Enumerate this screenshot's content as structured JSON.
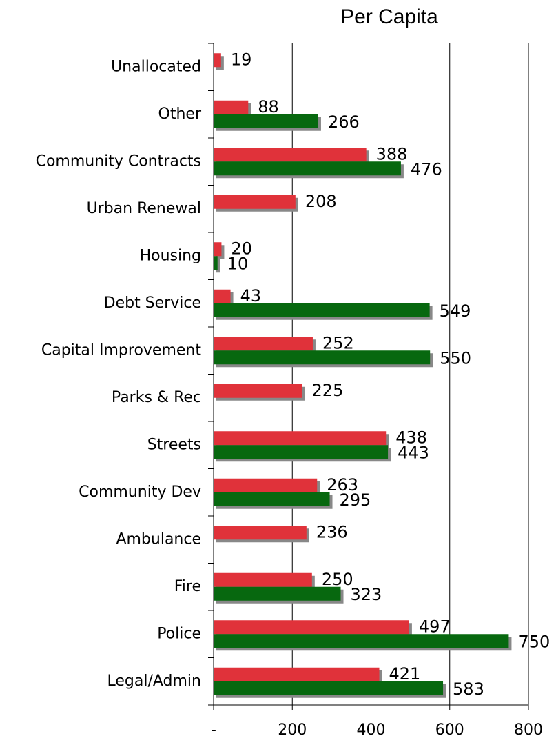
{
  "chart_data": {
    "type": "hbar",
    "title": "Per Capita",
    "categories": [
      "Unallocated",
      "Other",
      "Community Contracts",
      "Urban Renewal",
      "Housing",
      "Debt Service",
      "Capital Improvement",
      "Parks & Rec",
      "Streets",
      "Community Dev",
      "Ambulance",
      "Fire",
      "Police",
      "Legal/Admin"
    ],
    "series": [
      {
        "color": "#e0323a",
        "values": [
          19,
          88,
          388,
          208,
          20,
          43,
          252,
          225,
          438,
          263,
          236,
          250,
          497,
          421
        ]
      },
      {
        "color": "#07680f",
        "values": [
          null,
          266,
          476,
          null,
          10,
          549,
          550,
          null,
          443,
          295,
          null,
          323,
          750,
          583
        ]
      }
    ],
    "xlim": [
      0,
      800
    ],
    "xticks": [
      {
        "value": 0,
        "label": "-"
      },
      200,
      400,
      600,
      800
    ],
    "grid": true
  }
}
